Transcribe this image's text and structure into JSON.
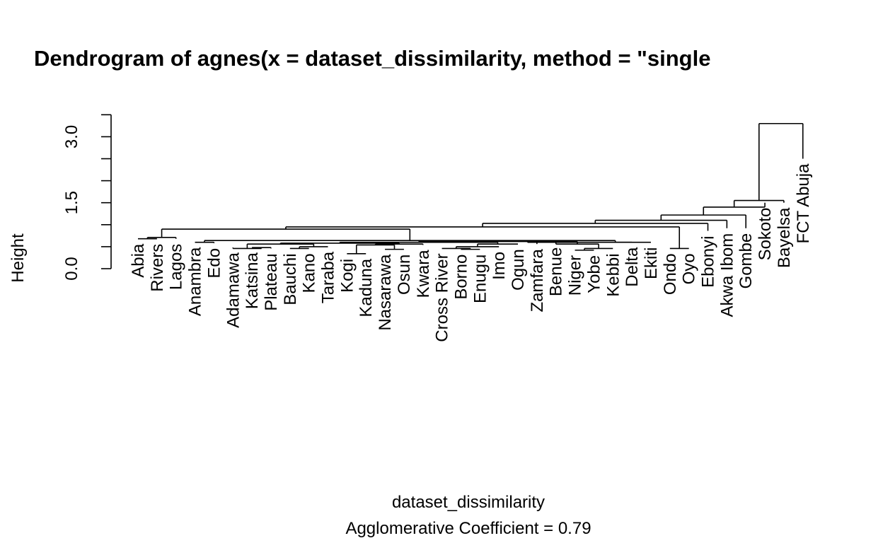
{
  "chart_data": {
    "type": "dendrogram",
    "title": "Dendrogram of  agnes(x = dataset_dissimilarity, method = \"single",
    "xlabel": "dataset_dissimilarity",
    "ylabel": "Height",
    "subtitle_prefix": "Agglomerative Coefficient =  ",
    "agglomerative_coefficient": "0.79",
    "ylim": [
      0,
      3.5
    ],
    "yticks": [
      0.0,
      0.5,
      1.0,
      1.5,
      2.0,
      2.5,
      3.0,
      3.5
    ],
    "ytick_labels": [
      "0.0",
      "1.5",
      "3.0"
    ],
    "ytick_label_values": [
      0.0,
      1.5,
      3.0
    ],
    "leaves": [
      "Abia",
      "Rivers",
      "Lagos",
      "Anambra",
      "Edo",
      "Adamawa",
      "Katsina",
      "Plateau",
      "Bauchi",
      "Kano",
      "Taraba",
      "Kogi",
      "Kaduna",
      "Nasarawa",
      "Osun",
      "Kwara",
      "Cross River",
      "Borno",
      "Enugu",
      "Imo",
      "Ogun",
      "Zamfara",
      "Benue",
      "Niger",
      "Yobe",
      "Kebbi",
      "Delta",
      "Ekiti",
      "Ondo",
      "Oyo",
      "Ebonyi",
      "Akwa Ibom",
      "Gombe",
      "Sokoto",
      "Bayelsa",
      "FCT Abuja"
    ],
    "leaf_heights": [
      0.68,
      0.68,
      0.68,
      0.6,
      0.58,
      0.48,
      0.48,
      0.46,
      0.46,
      0.46,
      0.5,
      0.34,
      0.34,
      0.44,
      0.44,
      0.54,
      0.46,
      0.44,
      0.44,
      0.5,
      0.56,
      0.56,
      0.6,
      0.42,
      0.42,
      0.46,
      0.6,
      0.6,
      0.46,
      0.46,
      0.86,
      0.92,
      0.92,
      1.5,
      1.5,
      2.5
    ],
    "merges": [
      {
        "a": "Abia",
        "b": "Rivers",
        "height": 0.68
      },
      {
        "a": "m1",
        "b": "Lagos",
        "height": 0.71
      },
      {
        "a": "Anambra",
        "b": "Edo",
        "height": 0.6
      },
      {
        "a": "Katsina",
        "b": "Plateau",
        "height": 0.48
      },
      {
        "a": "Adamawa",
        "b": "m4",
        "height": 0.46
      },
      {
        "a": "Bauchi",
        "b": "Kano",
        "height": 0.46
      },
      {
        "a": "m6",
        "b": "Taraba",
        "height": 0.5
      },
      {
        "a": "m5",
        "b": "m7",
        "height": 0.56
      },
      {
        "a": "Kogi",
        "b": "Kaduna",
        "height": 0.34
      },
      {
        "a": "Nasarawa",
        "b": "Osun",
        "height": 0.44
      },
      {
        "a": "m9",
        "b": "m10",
        "height": 0.54
      },
      {
        "a": "m11",
        "b": "Kwara",
        "height": 0.56
      },
      {
        "a": "m8",
        "b": "m12",
        "height": 0.58
      },
      {
        "a": "Borno",
        "b": "Enugu",
        "height": 0.44
      },
      {
        "a": "Cross River",
        "b": "m14",
        "height": 0.46
      },
      {
        "a": "m15",
        "b": "Imo",
        "height": 0.5
      },
      {
        "a": "m16",
        "b": "Ogun",
        "height": 0.56
      },
      {
        "a": "m13",
        "b": "m17",
        "height": 0.6
      },
      {
        "a": "m18",
        "b": "Zamfara",
        "height": 0.62
      },
      {
        "a": "Niger",
        "b": "Yobe",
        "height": 0.42
      },
      {
        "a": "m20",
        "b": "Kebbi",
        "height": 0.46
      },
      {
        "a": "Benue",
        "b": "m21",
        "height": 0.56
      },
      {
        "a": "m19",
        "b": "m22",
        "height": 0.62
      },
      {
        "a": "m23",
        "b": "Delta",
        "height": 0.6
      },
      {
        "a": "m24",
        "b": "Ekiti",
        "height": 0.6
      },
      {
        "a": "m3",
        "b": "m25",
        "height": 0.64
      },
      {
        "a": "Ondo",
        "b": "Oyo",
        "height": 0.46
      },
      {
        "a": "m2",
        "b": "m26",
        "height": 0.9
      },
      {
        "a": "m28",
        "b": "m27",
        "height": 0.95
      },
      {
        "a": "m29",
        "b": "Ebonyi",
        "height": 1.03
      },
      {
        "a": "m30",
        "b": "Akwa Ibom",
        "height": 1.1
      },
      {
        "a": "m31",
        "b": "Gombe",
        "height": 1.22
      },
      {
        "a": "m32",
        "b": "Sokoto",
        "height": 1.4
      },
      {
        "a": "m33",
        "b": "Bayelsa",
        "height": 1.55
      },
      {
        "a": "m34",
        "b": "FCT Abuja",
        "height": 3.3
      }
    ]
  }
}
